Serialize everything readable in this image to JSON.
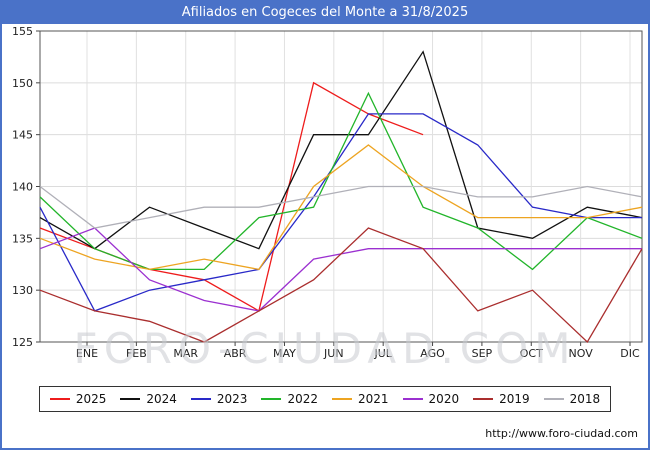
{
  "window": {
    "title": "Afiliados en Cogeces del Monte a 31/8/2025"
  },
  "watermark": "FORO-CIUDAD.COM",
  "footer": {
    "url": "http://www.foro-ciudad.com"
  },
  "chart_data": {
    "type": "line",
    "title": "Afiliados en Cogeces del Monte a 31/8/2025",
    "xlabel": "",
    "ylabel": "",
    "ylim": [
      125,
      155
    ],
    "yticks": [
      125,
      130,
      135,
      140,
      145,
      150,
      155
    ],
    "grid": true,
    "legend_position": "bottom",
    "categories": [
      "ENE",
      "FEB",
      "MAR",
      "ABR",
      "MAY",
      "JUN",
      "JUL",
      "AGO",
      "SEP",
      "OCT",
      "NOV",
      "DIC"
    ],
    "series": [
      {
        "name": "2025",
        "color": "#ee1c1c",
        "values": [
          136,
          134,
          132,
          131,
          128,
          150,
          147,
          145
        ]
      },
      {
        "name": "2024",
        "color": "#111111",
        "values": [
          137,
          134,
          138,
          136,
          134,
          145,
          145,
          153,
          136,
          135,
          138,
          137
        ]
      },
      {
        "name": "2023",
        "color": "#2929c8",
        "values": [
          138,
          128,
          130,
          131,
          132,
          139,
          147,
          147,
          144,
          138,
          137,
          137
        ]
      },
      {
        "name": "2022",
        "color": "#22b52a",
        "values": [
          139,
          134,
          132,
          132,
          137,
          138,
          149,
          138,
          136,
          132,
          137,
          135
        ]
      },
      {
        "name": "2021",
        "color": "#eda421",
        "values": [
          135,
          133,
          132,
          133,
          132,
          140,
          144,
          140,
          137,
          137,
          137,
          138
        ]
      },
      {
        "name": "2020",
        "color": "#9b30d0",
        "values": [
          134,
          136,
          131,
          129,
          128,
          133,
          134,
          134,
          134,
          134,
          134,
          134
        ]
      },
      {
        "name": "2019",
        "color": "#aa2e2e",
        "values": [
          130,
          128,
          127,
          125,
          128,
          131,
          136,
          134,
          128,
          130,
          125,
          134
        ]
      },
      {
        "name": "2018",
        "color": "#b0b0b8",
        "values": [
          140,
          136,
          137,
          138,
          138,
          139,
          140,
          140,
          139,
          139,
          140,
          139
        ]
      }
    ]
  }
}
